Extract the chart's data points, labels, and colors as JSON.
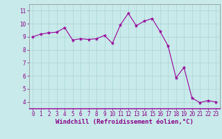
{
  "x": [
    0,
    1,
    2,
    3,
    4,
    5,
    6,
    7,
    8,
    9,
    10,
    11,
    12,
    13,
    14,
    15,
    16,
    17,
    18,
    19,
    20,
    21,
    22,
    23
  ],
  "y": [
    9.0,
    9.2,
    9.3,
    9.35,
    9.7,
    8.75,
    8.85,
    8.8,
    8.85,
    9.1,
    8.5,
    9.9,
    10.8,
    9.85,
    10.2,
    10.4,
    9.4,
    8.3,
    5.85,
    6.65,
    4.3,
    3.95,
    4.1,
    4.0
  ],
  "line_color": "#990099",
  "marker": "*",
  "marker_size": 3.5,
  "line_width": 0.8,
  "xlabel": "Windchill (Refroidissement éolien,°C)",
  "xlabel_fontsize": 6.5,
  "xlim": [
    -0.5,
    23.5
  ],
  "ylim": [
    3.5,
    11.5
  ],
  "yticks": [
    4,
    5,
    6,
    7,
    8,
    9,
    10,
    11
  ],
  "xticks": [
    0,
    1,
    2,
    3,
    4,
    5,
    6,
    7,
    8,
    9,
    10,
    11,
    12,
    13,
    14,
    15,
    16,
    17,
    18,
    19,
    20,
    21,
    22,
    23
  ],
  "grid_color": "#aad4d4",
  "background_color": "#c8eaea",
  "tick_color": "#880088",
  "label_color": "#880088",
  "tick_fontsize": 5.5,
  "spine_color": "#888888"
}
